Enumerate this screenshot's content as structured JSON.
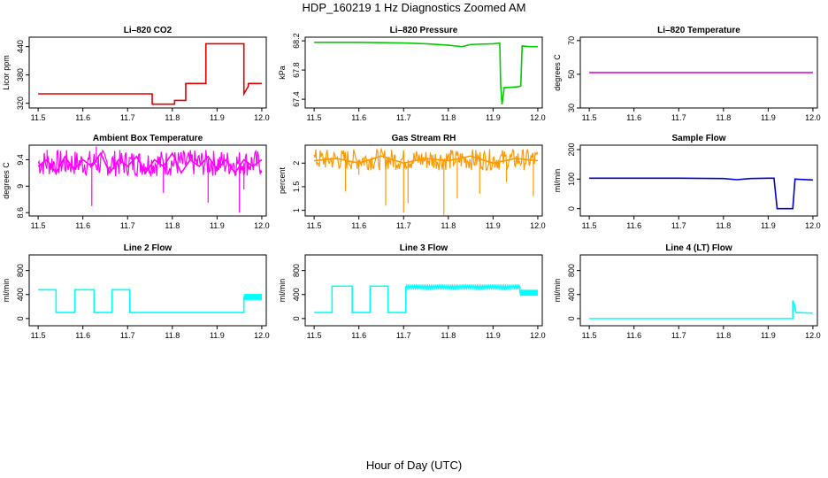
{
  "page": {
    "title": "HDP_160219  1 Hz Diagnostics Zoomed AM",
    "xaxis_caption": "Hour of Day (UTC)"
  },
  "chart_data": [
    {
      "type": "line",
      "title": "Li–820 CO2",
      "ylabel": "Licor ppm",
      "color": "#e00000",
      "xlim": [
        11.48,
        12.01
      ],
      "ylim": [
        310,
        460
      ],
      "yticks": [
        320,
        380,
        440
      ],
      "xticks": [
        11.5,
        11.6,
        11.7,
        11.8,
        11.9,
        12.0
      ],
      "series": [
        {
          "x": [
            11.5,
            11.755,
            11.755,
            11.805,
            11.805,
            11.83,
            11.83,
            11.875,
            11.875,
            11.96,
            11.96,
            11.97,
            11.97,
            12.0
          ],
          "y": [
            340,
            340,
            318,
            318,
            326,
            326,
            362,
            362,
            446,
            446,
            340,
            356,
            362,
            362
          ]
        }
      ]
    },
    {
      "type": "line",
      "title": "Li–820 Pressure",
      "ylabel": "kPa",
      "color": "#00cc00",
      "xlim": [
        11.48,
        12.01
      ],
      "ylim": [
        67.28,
        68.25
      ],
      "yticks": [
        67.4,
        67.8,
        68.2
      ],
      "xticks": [
        11.5,
        11.6,
        11.7,
        11.8,
        11.9,
        12.0
      ],
      "series": [
        {
          "x": [
            11.5,
            11.6,
            11.7,
            11.75,
            11.8,
            11.83,
            11.85,
            11.9,
            11.915,
            11.917,
            11.92,
            11.925,
            11.93,
            11.955,
            11.962,
            11.965,
            11.98,
            12.0
          ],
          "y": [
            68.18,
            68.18,
            68.17,
            68.16,
            68.14,
            68.12,
            68.15,
            68.16,
            68.17,
            67.6,
            67.33,
            67.56,
            67.56,
            67.57,
            67.58,
            68.13,
            68.12,
            68.12
          ]
        }
      ]
    },
    {
      "type": "line",
      "title": "Li–820 Temperature",
      "ylabel": "degrees C",
      "color": "#cc00cc",
      "xlim": [
        11.48,
        12.01
      ],
      "ylim": [
        30,
        72
      ],
      "yticks": [
        30,
        50,
        70
      ],
      "xticks": [
        11.5,
        11.6,
        11.7,
        11.8,
        11.9,
        12.0
      ],
      "series": [
        {
          "x": [
            11.5,
            12.0
          ],
          "y": [
            51,
            51
          ]
        }
      ]
    },
    {
      "type": "line",
      "title": "Ambient Box Temperature",
      "ylabel": "degrees C",
      "color": "#ff00ff",
      "xlim": [
        11.48,
        12.01
      ],
      "ylim": [
        8.55,
        9.62
      ],
      "yticks": [
        8.6,
        9.0,
        9.4
      ],
      "xticks": [
        11.5,
        11.6,
        11.7,
        11.8,
        11.9,
        12.0
      ],
      "series": [
        {
          "x": [
            11.5,
            11.52,
            11.54,
            11.56,
            11.58,
            11.6,
            11.62,
            11.64,
            11.66,
            11.68,
            11.7,
            11.72,
            11.74,
            11.76,
            11.78,
            11.8,
            11.82,
            11.84,
            11.86,
            11.88,
            11.9,
            11.92,
            11.94,
            11.96,
            11.98,
            12.0
          ],
          "y": [
            9.3,
            9.4,
            9.2,
            9.45,
            9.25,
            9.4,
            9.3,
            9.5,
            9.2,
            9.4,
            9.3,
            9.45,
            9.2,
            9.4,
            9.3,
            9.5,
            9.2,
            9.4,
            9.3,
            9.45,
            9.25,
            9.4,
            9.2,
            9.4,
            9.3,
            9.4
          ],
          "band": [
            9.15,
            9.55
          ],
          "spikes": [
            [
              11.52,
              9.55
            ],
            [
              11.62,
              8.7
            ],
            [
              11.63,
              9.6
            ],
            [
              11.78,
              8.9
            ],
            [
              11.88,
              8.75
            ],
            [
              11.95,
              8.6
            ],
            [
              11.96,
              8.95
            ]
          ]
        }
      ]
    },
    {
      "type": "line",
      "title": "Gas Stream RH",
      "ylabel": "percent",
      "color": "#ff9900",
      "xlim": [
        11.48,
        12.01
      ],
      "ylim": [
        0.88,
        2.38
      ],
      "yticks": [
        1.0,
        1.5,
        2.0
      ],
      "xticks": [
        11.5,
        11.6,
        11.7,
        11.8,
        11.9,
        12.0
      ],
      "series": [
        {
          "x": [
            11.5,
            11.55,
            11.6,
            11.65,
            11.7,
            11.75,
            11.8,
            11.85,
            11.9,
            11.95,
            12.0
          ],
          "y": [
            2.05,
            2.1,
            2.0,
            2.15,
            2.0,
            2.1,
            2.05,
            2.15,
            2.0,
            2.1,
            2.05
          ],
          "band": [
            1.85,
            2.3
          ],
          "spikes": [
            [
              11.57,
              1.4
            ],
            [
              11.6,
              1.75
            ],
            [
              11.66,
              1.1
            ],
            [
              11.7,
              0.95
            ],
            [
              11.71,
              1.15
            ],
            [
              11.79,
              0.9
            ],
            [
              11.82,
              1.25
            ],
            [
              11.87,
              1.35
            ],
            [
              11.93,
              1.6
            ],
            [
              11.99,
              1.3
            ]
          ]
        }
      ]
    },
    {
      "type": "line",
      "title": "Sample Flow",
      "ylabel": "ml/min",
      "color": "#0000cc",
      "xlim": [
        11.48,
        12.01
      ],
      "ylim": [
        -25,
        215
      ],
      "yticks": [
        0,
        100,
        200
      ],
      "xticks": [
        11.5,
        11.6,
        11.7,
        11.8,
        11.9,
        12.0
      ],
      "series": [
        {
          "x": [
            11.5,
            11.7,
            11.8,
            11.83,
            11.86,
            11.9,
            11.913,
            11.92,
            11.95,
            11.955,
            11.96,
            12.0
          ],
          "y": [
            103,
            103,
            102,
            98,
            102,
            103,
            103,
            0,
            0,
            0,
            100,
            97
          ]
        }
      ]
    },
    {
      "type": "line",
      "title": "Line 2 Flow",
      "ylabel": "ml/min",
      "color": "#00ffff",
      "xlim": [
        11.48,
        12.01
      ],
      "ylim": [
        -120,
        1060
      ],
      "yticks": [
        0,
        400,
        800
      ],
      "xticks": [
        11.5,
        11.6,
        11.7,
        11.8,
        11.9,
        12.0
      ],
      "series": [
        {
          "x": [
            11.5,
            11.54,
            11.54,
            11.582,
            11.582,
            11.625,
            11.625,
            11.665,
            11.665,
            11.705,
            11.705,
            11.96,
            11.96,
            12.0
          ],
          "y": [
            480,
            480,
            100,
            100,
            480,
            480,
            100,
            100,
            480,
            480,
            100,
            100,
            360,
            360
          ],
          "band_tail": [
            11.96,
            12.0,
            310,
            410
          ]
        }
      ]
    },
    {
      "type": "line",
      "title": "Line 3 Flow",
      "ylabel": "ml/min",
      "color": "#00ffff",
      "xlim": [
        11.48,
        12.01
      ],
      "ylim": [
        -120,
        1060
      ],
      "yticks": [
        0,
        400,
        800
      ],
      "xticks": [
        11.5,
        11.6,
        11.7,
        11.8,
        11.9,
        12.0
      ],
      "series": [
        {
          "x": [
            11.5,
            11.54,
            11.54,
            11.585,
            11.585,
            11.625,
            11.625,
            11.665,
            11.665,
            11.705,
            11.705,
            11.96,
            11.96,
            12.0
          ],
          "y": [
            100,
            100,
            540,
            540,
            100,
            100,
            540,
            540,
            100,
            100,
            530,
            530,
            430,
            430
          ],
          "band_tail": [
            11.96,
            12.0,
            380,
            480
          ],
          "wave": [
            11.705,
            11.96,
            480,
            570
          ]
        }
      ]
    },
    {
      "type": "line",
      "title": "Line 4 (LT) Flow",
      "ylabel": "ml/min",
      "color": "#00ffff",
      "xlim": [
        11.48,
        12.01
      ],
      "ylim": [
        -120,
        1060
      ],
      "yticks": [
        0,
        400,
        800
      ],
      "xticks": [
        11.5,
        11.6,
        11.7,
        11.8,
        11.9,
        12.0
      ],
      "series": [
        {
          "x": [
            11.5,
            11.955,
            11.955,
            11.958,
            11.962,
            11.962,
            12.0
          ],
          "y": [
            0,
            0,
            300,
            250,
            100,
            100,
            90
          ]
        }
      ]
    }
  ]
}
